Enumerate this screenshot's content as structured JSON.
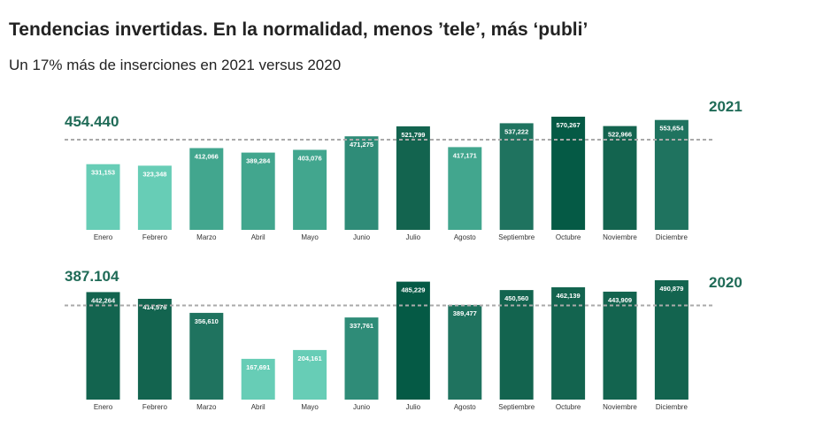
{
  "title": "Tendencias invertidas. En la normalidad, menos ’tele’, más ‘publi’",
  "subtitle": "Un 17% más de inserciones en 2021 versus 2020",
  "colors": {
    "shades": [
      "#67cdb6",
      "#42a68e",
      "#2f8c78",
      "#1f735f",
      "#13644f",
      "#055a45"
    ],
    "average_line": "#aaaaaa",
    "bar_label": "#ffffff",
    "month_label": "#333333",
    "accent_text": "#1f6b57"
  },
  "chart_data": [
    {
      "type": "bar",
      "series_label": "2021",
      "average_label": "454.440",
      "average": 454440,
      "categories": [
        "Enero",
        "Febrero",
        "Marzo",
        "Abril",
        "Mayo",
        "Junio",
        "Julio",
        "Agosto",
        "Septiembre",
        "Octubre",
        "Noviembre",
        "Diciembre"
      ],
      "values": [
        331153,
        323348,
        412066,
        389284,
        403076,
        471275,
        521799,
        417171,
        537222,
        570267,
        522966,
        553654
      ],
      "value_labels": [
        "331,153",
        "323,348",
        "412,066",
        "389,284",
        "403,076",
        "471,275",
        "521,799",
        "417,171",
        "537,222",
        "570,267",
        "522,966",
        "553,654"
      ],
      "shade_index": [
        0,
        0,
        1,
        1,
        1,
        2,
        4,
        1,
        3,
        5,
        4,
        3
      ]
    },
    {
      "type": "bar",
      "series_label": "2020",
      "average_label": "387.104",
      "average": 387104,
      "categories": [
        "Enero",
        "Febrero",
        "Marzo",
        "Abril",
        "Mayo",
        "Junio",
        "Julio",
        "Agosto",
        "Septiembre",
        "Octubre",
        "Noviembre",
        "Diciembre"
      ],
      "values": [
        442264,
        414576,
        356610,
        167691,
        204161,
        337761,
        485229,
        389477,
        450560,
        462139,
        443909,
        490879
      ],
      "value_labels": [
        "442,264",
        "414,576",
        "356,610",
        "167,691",
        "204,161",
        "337,761",
        "485,229",
        "389,477",
        "450,560",
        "462,139",
        "443,909",
        "490,879"
      ],
      "shade_index": [
        4,
        4,
        3,
        0,
        0,
        2,
        5,
        3,
        4,
        4,
        4,
        4
      ]
    }
  ]
}
